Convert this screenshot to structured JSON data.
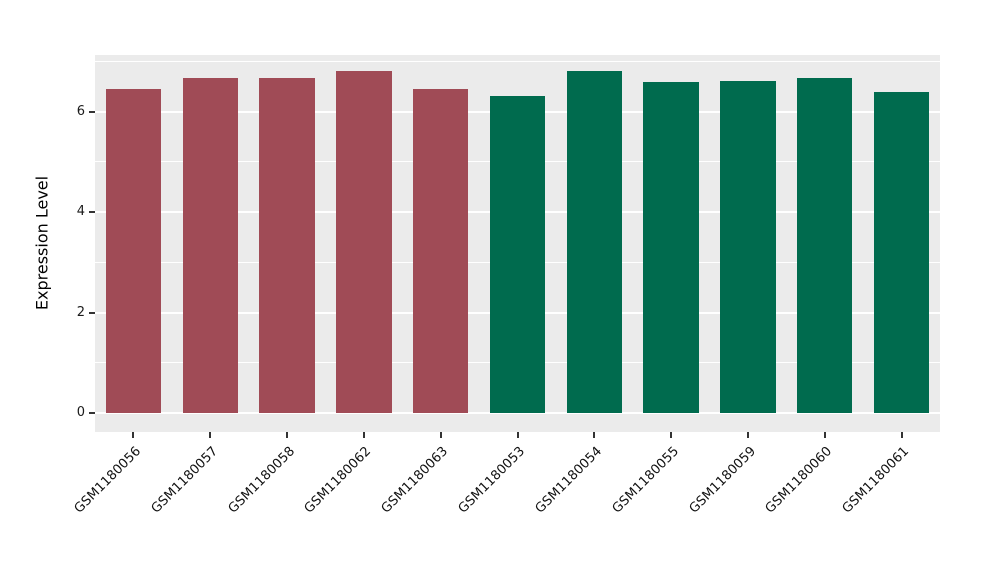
{
  "chart_data": {
    "type": "bar",
    "title": "",
    "xlabel": "",
    "ylabel": "Expression Level",
    "categories": [
      "GSM1180056",
      "GSM1180057",
      "GSM1180058",
      "GSM1180062",
      "GSM1180063",
      "GSM1180053",
      "GSM1180054",
      "GSM1180055",
      "GSM1180059",
      "GSM1180060",
      "GSM1180061"
    ],
    "values": [
      6.45,
      6.67,
      6.67,
      6.8,
      6.45,
      6.3,
      6.8,
      6.58,
      6.6,
      6.67,
      6.38
    ],
    "bar_colors": [
      "#a04b56",
      "#a04b56",
      "#a04b56",
      "#a04b56",
      "#a04b56",
      "#006b4e",
      "#006b4e",
      "#006b4e",
      "#006b4e",
      "#006b4e",
      "#006b4e"
    ],
    "group_colors": {
      "left_group": "#a04b56",
      "right_group": "#006b4e"
    },
    "yticks": [
      0,
      2,
      4,
      6
    ],
    "minor_yticks": [
      1,
      3,
      5,
      7
    ],
    "ylim": [
      0,
      7.1
    ],
    "grid": true,
    "legend": "none",
    "panel_background": "#ebebeb",
    "gridline_color": "#ffffff"
  }
}
